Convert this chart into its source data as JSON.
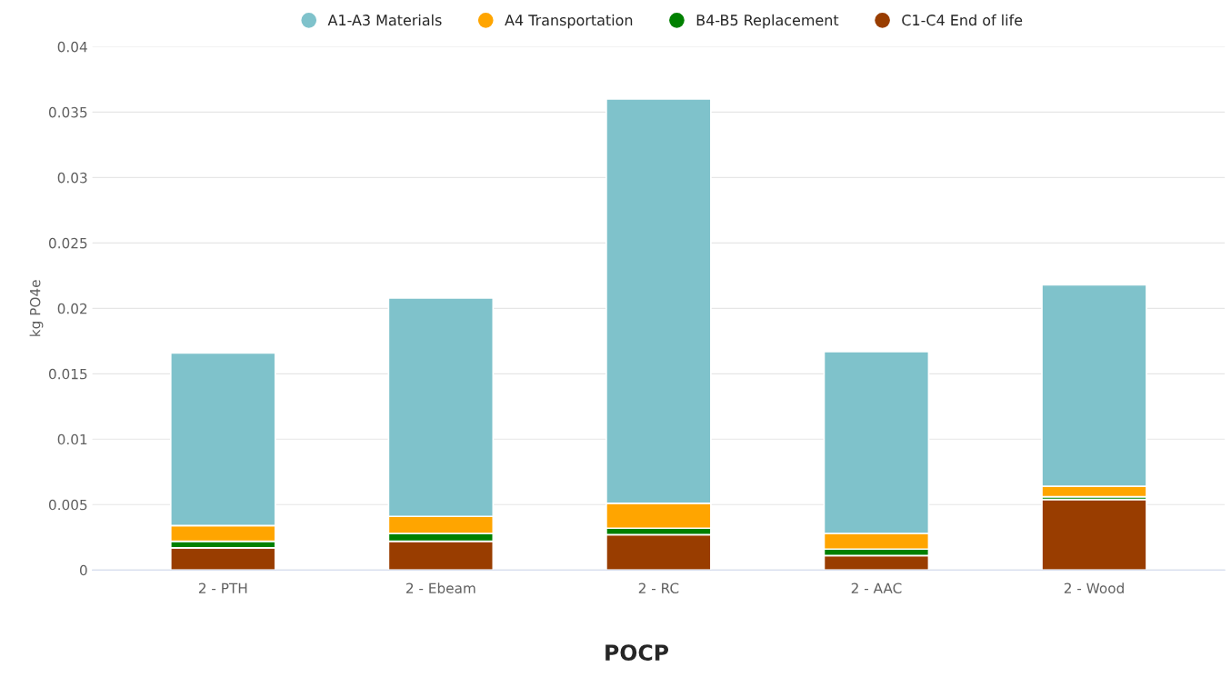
{
  "chart_data": {
    "type": "bar",
    "title": "POCP",
    "ylabel": "kg PO4e",
    "stacked": true,
    "categories": [
      "2 - PTH",
      "2 - Ebeam",
      "2 - RC",
      "2 - AAC",
      "2 - Wood"
    ],
    "series": [
      {
        "name": "C1-C4 End of life",
        "color": "#993d00",
        "values": [
          0.0017,
          0.0022,
          0.0027,
          0.0011,
          0.0054
        ]
      },
      {
        "name": "B4-B5 Replacement",
        "color": "#008000",
        "values": [
          0.0005,
          0.0006,
          0.0005,
          0.0005,
          0.0002
        ]
      },
      {
        "name": "A4 Transportation",
        "color": "#ffa500",
        "values": [
          0.0012,
          0.0013,
          0.0019,
          0.0012,
          0.0008
        ]
      },
      {
        "name": "A1-A3 Materials",
        "color": "#7fc2cb",
        "values": [
          0.0132,
          0.0167,
          0.0309,
          0.0139,
          0.0154
        ]
      }
    ],
    "ylim": [
      0,
      0.04
    ],
    "yticks": [
      0,
      0.005,
      0.01,
      0.015,
      0.02,
      0.025,
      0.03,
      0.035,
      0.04
    ],
    "grid": "y",
    "legend": "top"
  }
}
